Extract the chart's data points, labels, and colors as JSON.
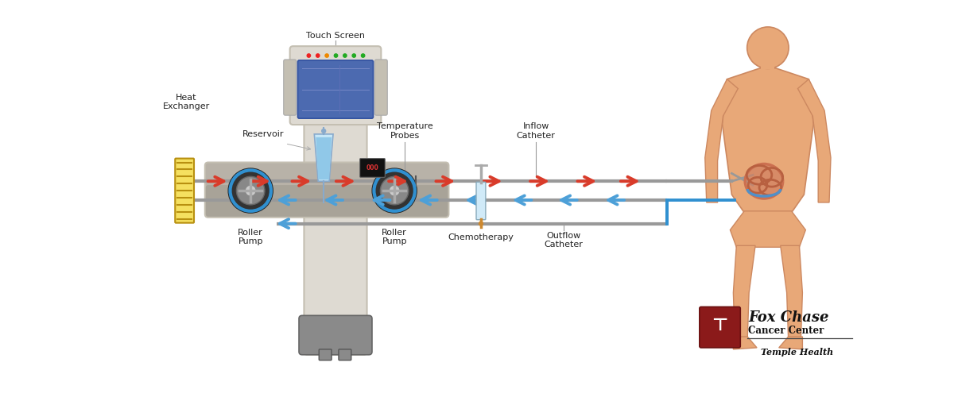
{
  "bg_color": "#ffffff",
  "arrow_red_color": "#d93b2a",
  "arrow_blue_color": "#4da0d8",
  "machine_body_color": "#dedad2",
  "machine_dark_color": "#c4bfb2",
  "machine_base_color": "#8a8a8a",
  "machine_panel_color": "#b8b2a8",
  "heat_exchanger_color": "#e8b820",
  "heat_exchanger_border": "#b89010",
  "body_skin_color": "#e8a878",
  "body_outline_color": "#cc8860",
  "organ_fill_color": "#cc7050",
  "organ_loop_color": "#a84030",
  "organ_liquid_color": "#5090c8",
  "screen_bg_color": "#5870b8",
  "screen_border_color": "#3050a0",
  "tube_color": "#999999",
  "blue_tube_color": "#3090d0",
  "syringe_color": "#d0eaf8",
  "syringe_needle_color": "#cc8830",
  "label_color": "#222222",
  "label_fontsize": 8,
  "logo_box_color": "#8b1a1a",
  "labels": {
    "touch_screen": "Touch Screen",
    "heat_exchanger": "Heat\nExchanger",
    "reservoir": "Reservoir",
    "roller_pump1": "Roller\nPump",
    "roller_pump2": "Roller\nPump",
    "chemotherapy": "Chemotherapy",
    "temperature_probes": "Temperature\nProbes",
    "inflow_catheter": "Inflow\nCatheter",
    "outflow_catheter": "Outflow\nCatheter"
  },
  "logo_line1": "Fox Chase",
  "logo_line2": "Cancer Center",
  "logo_line3": "Temple Health"
}
